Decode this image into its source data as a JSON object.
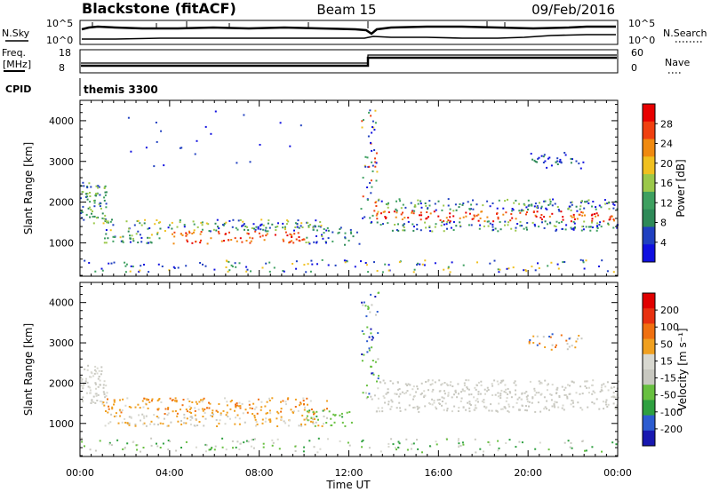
{
  "header": {
    "station": "Blackstone (fitACF)",
    "beam": "Beam 15",
    "date": "09/Feb/2016"
  },
  "aux_panels": {
    "nsky_label": "N.Sky",
    "nsearch_label": "N.Search",
    "noise_tick_hi": "10^5",
    "noise_tick_lo": "10^0",
    "freq_label_1": "Freq.",
    "freq_label_2": "[MHz]",
    "freq_ticks": [
      "18",
      "8"
    ],
    "nave_label": "Nave",
    "nave_ticks": [
      "60",
      "0"
    ],
    "cpid_label": "CPID",
    "cpid_value": "themis 3300"
  },
  "colors": {
    "power_scale": [
      "#1010e0",
      "#2040c0",
      "#2e8a58",
      "#3ea060",
      "#9bc84a",
      "#f0c020",
      "#f08a10",
      "#f04010",
      "#e80000"
    ],
    "velocity_scale": [
      "#1818b0",
      "#2c5cd0",
      "#2ea040",
      "#68c040",
      "#c8c8c0",
      "#d8d8d0",
      "#f0a020",
      "#f07010",
      "#e83010",
      "#e00000"
    ]
  },
  "chart_data": [
    {
      "type": "heatmap",
      "name": "power",
      "ylabel": "Slant Range [km]",
      "x_ticks": [
        "00:00",
        "04:00",
        "08:00",
        "12:00",
        "16:00",
        "20:00",
        "00:00"
      ],
      "y_ticks": [
        1000,
        2000,
        3000,
        4000
      ],
      "xlim_hours": [
        0,
        24
      ],
      "ylim_km": [
        180,
        4500
      ],
      "colorbar": {
        "label": "Power [dB]",
        "ticks": [
          4,
          8,
          12,
          16,
          20,
          24,
          28
        ],
        "range": [
          0,
          32
        ]
      }
    },
    {
      "type": "heatmap",
      "name": "velocity",
      "ylabel": "Slant Range [km]",
      "xlabel": "Time UT",
      "x_ticks": [
        "00:00",
        "04:00",
        "08:00",
        "12:00",
        "16:00",
        "20:00",
        "00:00"
      ],
      "y_ticks": [
        1000,
        2000,
        3000,
        4000
      ],
      "xlim_hours": [
        0,
        24
      ],
      "ylim_km": [
        180,
        4500
      ],
      "colorbar": {
        "label": "Velocity [m s⁻¹]",
        "ticks": [
          "200",
          "100",
          "50",
          "15",
          "-15",
          "-50",
          "-100",
          "-200"
        ]
      }
    }
  ]
}
